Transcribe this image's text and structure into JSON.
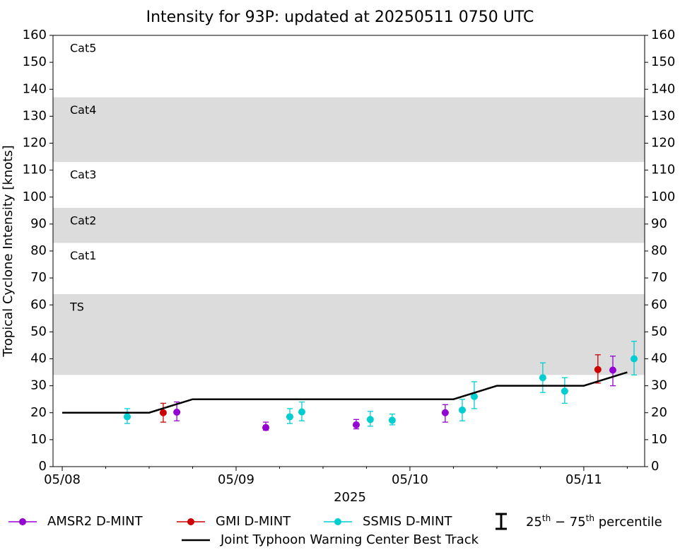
{
  "chart_data": {
    "type": "line",
    "title": "Intensity for 93P: updated at 20250511 0750 UTC",
    "xlabel": "2025",
    "ylabel": "Tropical Cyclone Intensity [knots]",
    "xlim": [
      7.947,
      11.35
    ],
    "xticks": [
      {
        "value": 8,
        "label": "05/08"
      },
      {
        "value": 9,
        "label": "05/09"
      },
      {
        "value": 10,
        "label": "05/10"
      },
      {
        "value": 11,
        "label": "05/11"
      }
    ],
    "xminorticks": [
      8.25,
      8.5,
      8.75,
      9.25,
      9.5,
      9.75,
      10.25,
      10.5,
      10.75,
      11.25
    ],
    "ylim": [
      0,
      160
    ],
    "yticks": [
      0,
      10,
      20,
      30,
      40,
      50,
      60,
      70,
      80,
      90,
      100,
      110,
      120,
      130,
      140,
      150,
      160
    ],
    "bands": [
      {
        "label": "TS",
        "low": 34,
        "high": 64,
        "shaded": true
      },
      {
        "label": "Cat1",
        "low": 64,
        "high": 83,
        "shaded": false
      },
      {
        "label": "Cat2",
        "low": 83,
        "high": 96,
        "shaded": true
      },
      {
        "label": "Cat3",
        "low": 96,
        "high": 113,
        "shaded": false
      },
      {
        "label": "Cat4",
        "low": 113,
        "high": 137,
        "shaded": true
      },
      {
        "label": "Cat5",
        "low": 137,
        "shaded": false
      }
    ],
    "band_color": "#dcdcdc",
    "series": [
      {
        "name": "AMSR2 D-MINT",
        "color": "#9400d3",
        "kind": "points",
        "x": [
          8.659,
          9.171,
          9.691,
          10.203,
          11.167
        ],
        "values": [
          20.2,
          14.5,
          15.5,
          20,
          35.8
        ],
        "low": [
          17,
          13.5,
          14,
          16.5,
          30
        ],
        "high": [
          24,
          16.5,
          17.5,
          23,
          41
        ]
      },
      {
        "name": "GMI D-MINT",
        "color": "#cc0000",
        "kind": "points",
        "x": [
          8.581,
          11.081
        ],
        "values": [
          20,
          36
        ],
        "low": [
          16.5,
          31
        ],
        "high": [
          23.5,
          41.5
        ]
      },
      {
        "name": "SSMIS D-MINT",
        "color": "#00ced1",
        "kind": "points",
        "x": [
          8.374,
          9.309,
          9.378,
          9.772,
          9.898,
          10.301,
          10.37,
          10.764,
          10.89,
          11.289
        ],
        "values": [
          18.5,
          18.5,
          20.3,
          17.5,
          17.2,
          21,
          26,
          33,
          28,
          40
        ],
        "low": [
          16,
          16,
          17,
          15,
          15.5,
          17,
          21.5,
          27.5,
          23.5,
          34
        ],
        "high": [
          21.5,
          21.5,
          24,
          20.5,
          19.5,
          25,
          31.5,
          38.5,
          33,
          46.5
        ]
      },
      {
        "name": "Joint Typhoon Warning Center Best Track",
        "color": "#000000",
        "kind": "line",
        "x": [
          8,
          8.5,
          8.75,
          10.25,
          10.5,
          11,
          11.25
        ],
        "values": [
          20,
          20,
          25,
          25,
          30,
          30,
          35
        ]
      }
    ],
    "errorbar_legend": [
      "25",
      "th",
      " − 75",
      "th",
      " percentile"
    ]
  }
}
